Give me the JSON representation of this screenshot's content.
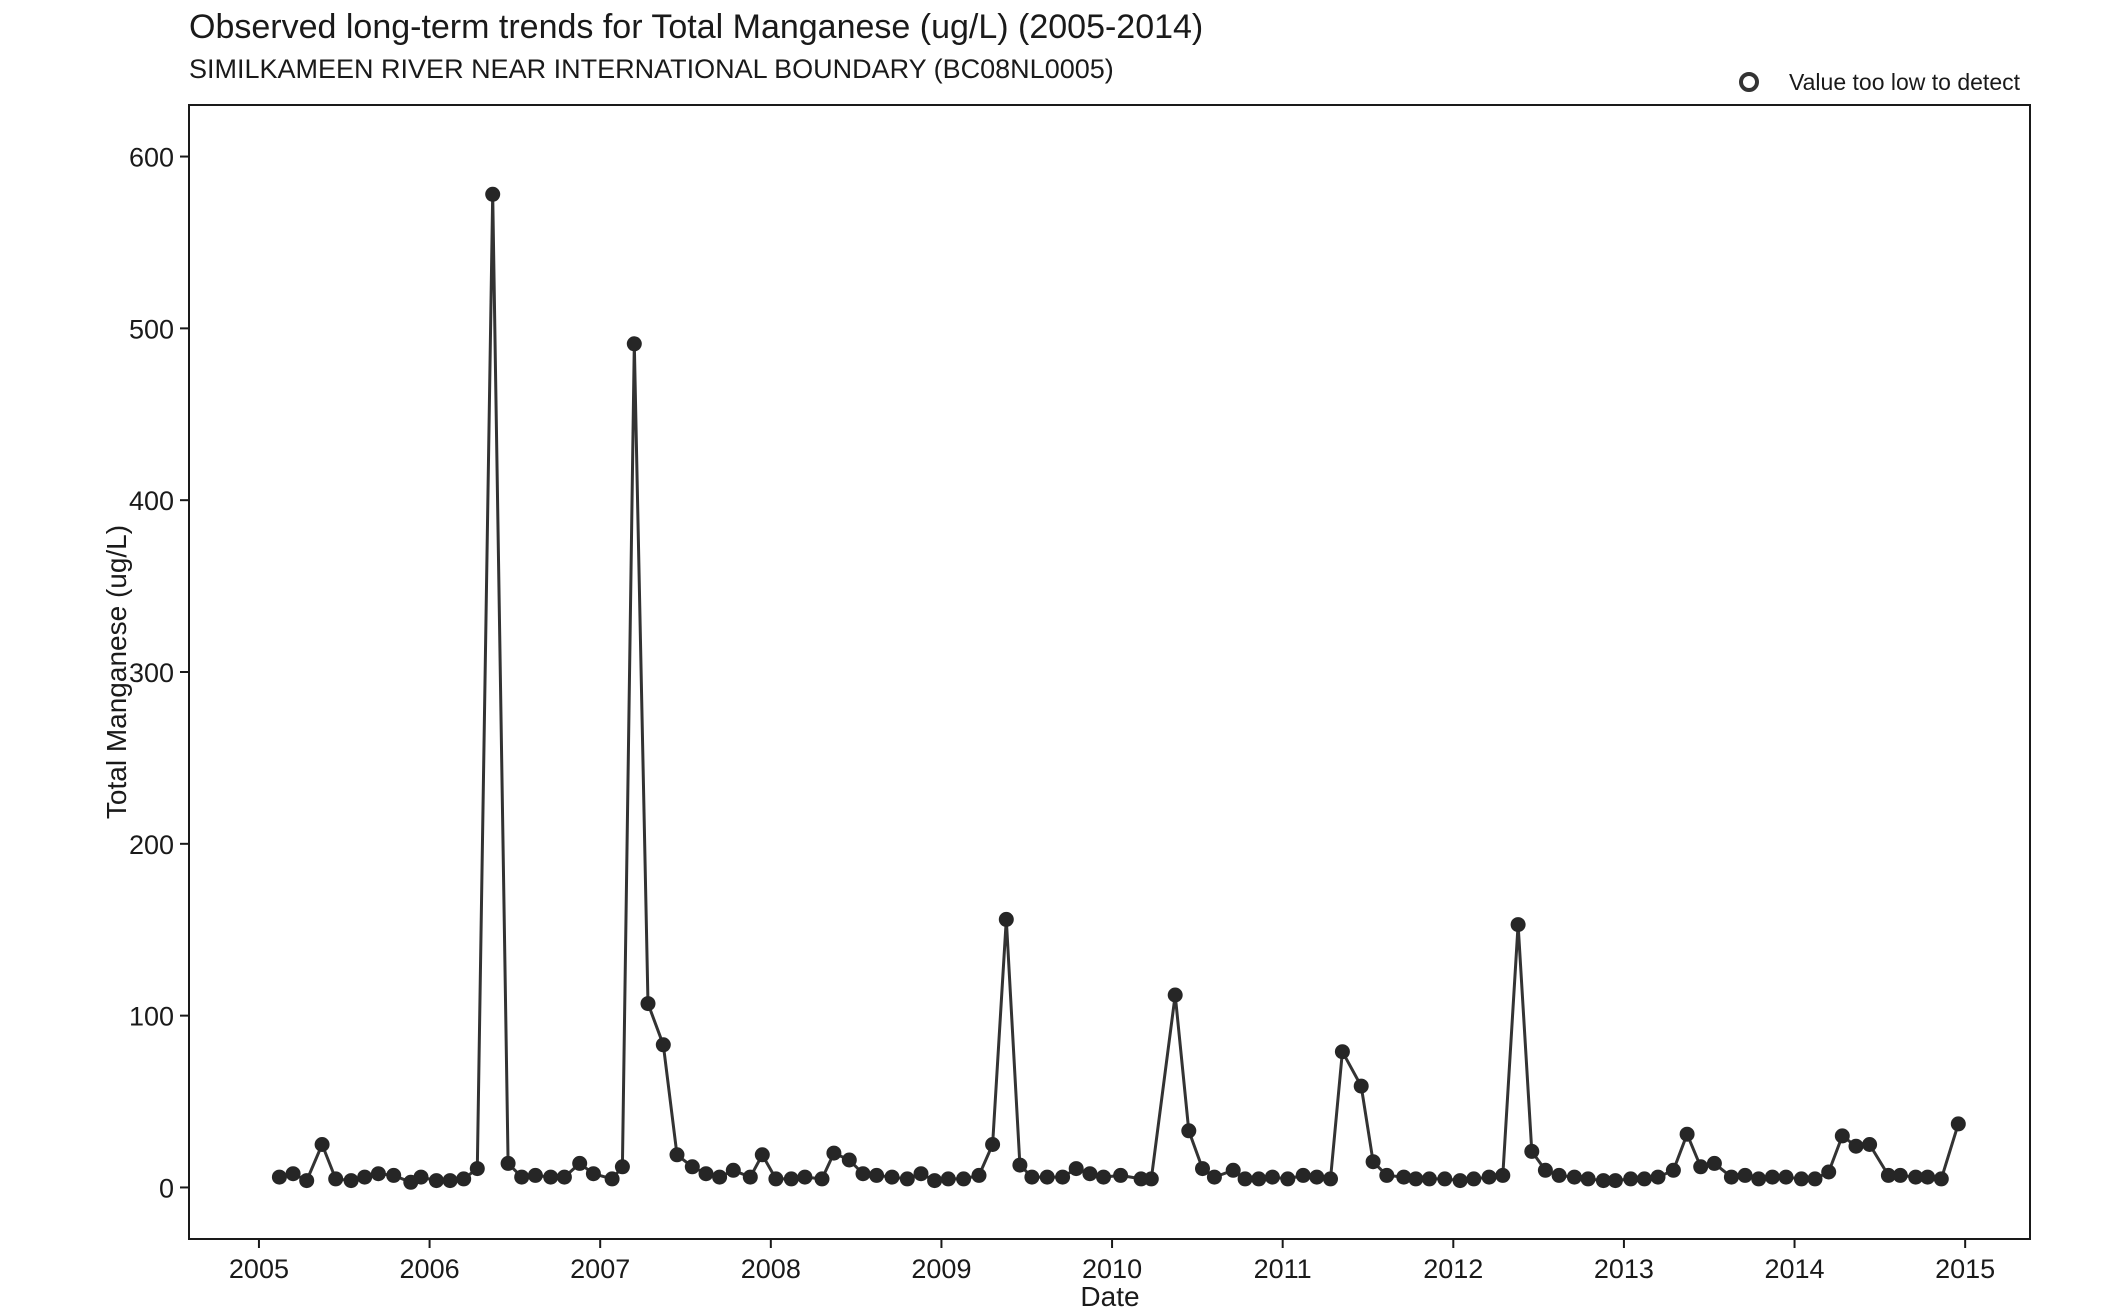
{
  "chart_data": {
    "type": "line",
    "title": "Observed long-term trends for Total Manganese (ug/L) (2005-2014)",
    "subtitle": "SIMILKAMEEN RIVER NEAR INTERNATIONAL BOUNDARY (BC08NL0005)",
    "xlabel": "Date",
    "ylabel": "Total Manganese (ug/L)",
    "xlim": [
      2004.59,
      2015.38
    ],
    "ylim": [
      -30,
      630
    ],
    "x_ticks": [
      "2005",
      "2006",
      "2007",
      "2008",
      "2009",
      "2010",
      "2011",
      "2012",
      "2013",
      "2014",
      "2015"
    ],
    "y_ticks": [
      "0",
      "100",
      "200",
      "300",
      "400",
      "500",
      "600"
    ],
    "grid": false,
    "legend": {
      "position": "top-right",
      "entries": [
        {
          "label": "Value too low to detect",
          "marker": "open-circle"
        }
      ]
    },
    "colors": {
      "line": "#333333",
      "point": "#262626",
      "axis": "#1a1a1a"
    },
    "series": [
      {
        "x": [
          2005.12,
          2005.2,
          2005.28,
          2005.37,
          2005.45,
          2005.54,
          2005.62,
          2005.7,
          2005.79,
          2005.89,
          2005.95,
          2006.04,
          2006.12,
          2006.2,
          2006.28,
          2006.37,
          2006.46,
          2006.54,
          2006.62,
          2006.71,
          2006.79,
          2006.88,
          2006.96,
          2007.07,
          2007.13,
          2007.2,
          2007.28,
          2007.37,
          2007.45,
          2007.54,
          2007.62,
          2007.7,
          2007.78,
          2007.88,
          2007.95,
          2008.03,
          2008.12,
          2008.2,
          2008.3,
          2008.37,
          2008.46,
          2008.54,
          2008.62,
          2008.71,
          2008.8,
          2008.88,
          2008.96,
          2009.04,
          2009.13,
          2009.22,
          2009.3,
          2009.38,
          2009.46,
          2009.53,
          2009.62,
          2009.71,
          2009.79,
          2009.87,
          2009.95,
          2010.05,
          2010.17,
          2010.23,
          2010.37,
          2010.45,
          2010.53,
          2010.6,
          2010.71,
          2010.78,
          2010.86,
          2010.94,
          2011.03,
          2011.12,
          2011.2,
          2011.28,
          2011.35,
          2011.46,
          2011.53,
          2011.61,
          2011.71,
          2011.78,
          2011.86,
          2011.95,
          2012.04,
          2012.12,
          2012.21,
          2012.29,
          2012.38,
          2012.46,
          2012.54,
          2012.62,
          2012.71,
          2012.79,
          2012.88,
          2012.95,
          2013.04,
          2013.12,
          2013.2,
          2013.29,
          2013.37,
          2013.45,
          2013.53,
          2013.63,
          2013.71,
          2013.79,
          2013.87,
          2013.95,
          2014.04,
          2014.12,
          2014.2,
          2014.28,
          2014.36,
          2014.44,
          2014.55,
          2014.62,
          2014.71,
          2014.78,
          2014.86,
          2014.96
        ],
        "y": [
          6,
          8,
          4,
          25,
          5,
          4,
          6,
          8,
          7,
          3,
          6,
          4,
          4,
          5,
          11,
          578,
          14,
          6,
          7,
          6,
          6,
          14,
          8,
          5,
          12,
          491,
          107,
          83,
          19,
          12,
          8,
          6,
          10,
          6,
          19,
          5,
          5,
          6,
          5,
          20,
          16,
          8,
          7,
          6,
          5,
          8,
          4,
          5,
          5,
          7,
          25,
          156,
          13,
          6,
          6,
          6,
          11,
          8,
          6,
          7,
          5,
          5,
          112,
          33,
          11,
          6,
          10,
          5,
          5,
          6,
          5,
          7,
          6,
          5,
          79,
          59,
          15,
          7,
          6,
          5,
          5,
          5,
          4,
          5,
          6,
          7,
          153,
          21,
          10,
          7,
          6,
          5,
          4,
          4,
          5,
          5,
          6,
          10,
          31,
          12,
          14,
          6,
          7,
          5,
          6,
          6,
          5,
          5,
          9,
          30,
          24,
          25,
          7,
          7,
          6,
          6,
          5,
          37
        ]
      }
    ]
  }
}
